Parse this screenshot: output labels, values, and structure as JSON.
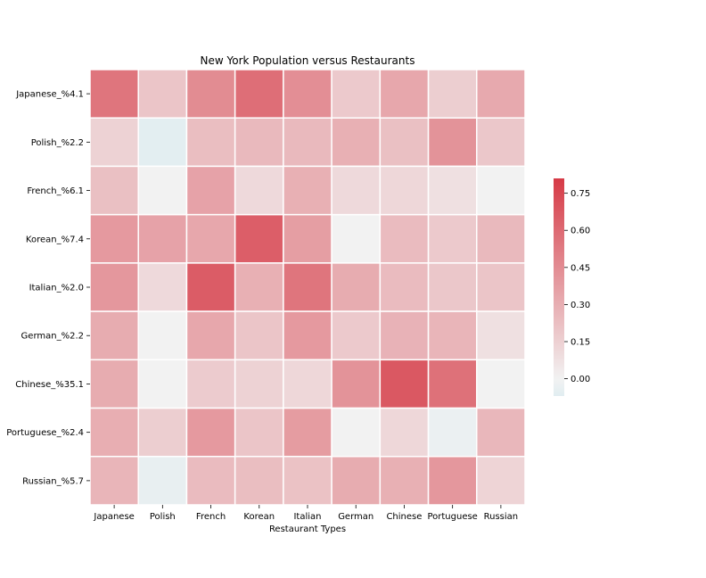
{
  "chart_data": {
    "type": "heatmap",
    "title": "New York Population versus Restaurants",
    "xlabel": "Restaurant Types",
    "ylabel": "",
    "x_categories": [
      "Japanese",
      "Polish",
      "French",
      "Korean",
      "Italian",
      "German",
      "Chinese",
      "Portuguese",
      "Russian"
    ],
    "y_categories": [
      "Japanese_%4.1",
      "Polish_%2.2",
      "French_%6.1",
      "Korean_%7.4",
      "Italian_%2.0",
      "German_%2.2",
      "Chinese_%35.1",
      "Portuguese_%2.4",
      "Russian_%5.7"
    ],
    "values": [
      [
        0.55,
        0.2,
        0.45,
        0.58,
        0.44,
        0.18,
        0.33,
        0.16,
        0.32
      ],
      [
        0.14,
        -0.06,
        0.23,
        0.25,
        0.25,
        0.29,
        0.22,
        0.42,
        0.19
      ],
      [
        0.22,
        0.0,
        0.35,
        0.11,
        0.29,
        0.11,
        0.12,
        0.08,
        0.0
      ],
      [
        0.39,
        0.35,
        0.33,
        0.65,
        0.37,
        0.0,
        0.24,
        0.18,
        0.25
      ],
      [
        0.4,
        0.11,
        0.66,
        0.29,
        0.55,
        0.31,
        0.24,
        0.19,
        0.2
      ],
      [
        0.31,
        0.0,
        0.33,
        0.2,
        0.39,
        0.18,
        0.28,
        0.27,
        0.08
      ],
      [
        0.31,
        0.0,
        0.17,
        0.14,
        0.12,
        0.42,
        0.68,
        0.57,
        0.0
      ],
      [
        0.3,
        0.16,
        0.39,
        0.2,
        0.38,
        0.0,
        0.12,
        -0.03,
        0.26
      ],
      [
        0.27,
        -0.04,
        0.24,
        0.23,
        0.21,
        0.31,
        0.29,
        0.4,
        0.13
      ]
    ],
    "vmin": -0.07,
    "vmax": 0.81,
    "colorbar_ticks": [
      "0.00",
      "0.15",
      "0.30",
      "0.45",
      "0.60",
      "0.75"
    ],
    "colorbar_tick_values": [
      0.0,
      0.15,
      0.3,
      0.45,
      0.6,
      0.75
    ],
    "colormap": {
      "low": "#e1edf1",
      "mid": "#f2f2f2",
      "high": "#d63a46"
    },
    "grid_line_color": "#ffffff"
  }
}
